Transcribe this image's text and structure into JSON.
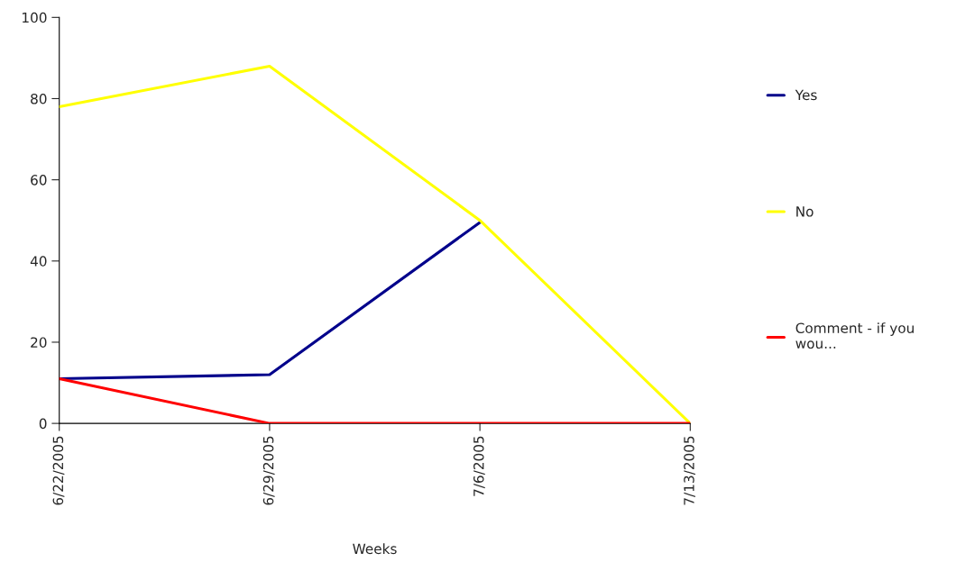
{
  "chart_data": {
    "type": "line",
    "xlabel": "Weeks",
    "categories": [
      "6/22/2005",
      "6/29/2005",
      "7/6/2005",
      "7/13/2005"
    ],
    "series": [
      {
        "name": "Yes",
        "color": "#00008b",
        "values": [
          11,
          12,
          49.5,
          null
        ]
      },
      {
        "name": "No",
        "color": "#ffff00",
        "values": [
          78,
          88,
          50,
          0
        ]
      },
      {
        "name": "Comment - if you\nwou...",
        "color": "#ff0000",
        "values": [
          11,
          0,
          0,
          0
        ]
      }
    ],
    "ylim": [
      0,
      100
    ],
    "yticks": [
      0,
      20,
      40,
      60,
      80,
      100
    ],
    "grid": false,
    "legend": "right",
    "marker": "none",
    "line_style": "solid"
  }
}
